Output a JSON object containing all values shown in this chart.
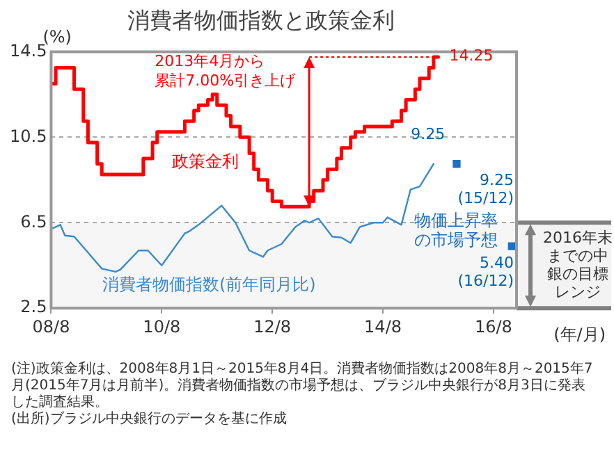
{
  "chart_data": {
    "type": "line",
    "title": "消費者物価指数と政策金利",
    "xlabel": "(年/月)",
    "ylabel": "(%)",
    "xlim": [
      "2008-08",
      "2017-01"
    ],
    "xticks": [
      {
        "value": "2008-08",
        "label": "08/8"
      },
      {
        "value": "2010-08",
        "label": "10/8"
      },
      {
        "value": "2012-08",
        "label": "12/8"
      },
      {
        "value": "2014-08",
        "label": "14/8"
      },
      {
        "value": "2016-08",
        "label": "16/8"
      }
    ],
    "ylim": [
      2.5,
      14.5
    ],
    "yticks": [
      2.5,
      6.5,
      10.5,
      14.5
    ],
    "grid": "y",
    "series": [
      {
        "name": "政策金利",
        "type": "step",
        "color": "#ff0000",
        "x": [
          "2008-08",
          "2008-09",
          "2009-01",
          "2009-03",
          "2009-04",
          "2009-06",
          "2009-07",
          "2010-04",
          "2010-06",
          "2010-07",
          "2011-01",
          "2011-03",
          "2011-04",
          "2011-06",
          "2011-07",
          "2011-08",
          "2011-10",
          "2011-11",
          "2012-01",
          "2012-03",
          "2012-04",
          "2012-05",
          "2012-07",
          "2012-08",
          "2012-10",
          "2013-04",
          "2013-05",
          "2013-07",
          "2013-08",
          "2013-10",
          "2013-11",
          "2014-01",
          "2014-02",
          "2014-04",
          "2014-10",
          "2014-12",
          "2015-01",
          "2015-03",
          "2015-04",
          "2015-06",
          "2015-07",
          "2015-08"
        ],
        "values": [
          13.0,
          13.75,
          12.75,
          11.25,
          10.25,
          9.25,
          8.75,
          9.5,
          10.25,
          10.75,
          11.25,
          11.75,
          12.0,
          12.25,
          12.5,
          12.0,
          11.5,
          11.0,
          10.5,
          9.75,
          9.0,
          8.5,
          8.0,
          7.5,
          7.25,
          7.5,
          8.0,
          8.5,
          9.0,
          9.5,
          10.0,
          10.5,
          10.75,
          11.0,
          11.25,
          11.75,
          12.25,
          12.75,
          13.25,
          13.75,
          14.25,
          14.25
        ]
      },
      {
        "name": "消費者物価指数(前年同月比)",
        "color": "#3a8ad0",
        "x": [
          "2008-08",
          "2008-10",
          "2008-11",
          "2009-01",
          "2009-04",
          "2009-07",
          "2009-10",
          "2009-11",
          "2010-03",
          "2010-05",
          "2010-08",
          "2011-01",
          "2011-02",
          "2011-04",
          "2011-09",
          "2011-12",
          "2012-03",
          "2012-06",
          "2012-07",
          "2012-10",
          "2013-01",
          "2013-03",
          "2013-04",
          "2013-06",
          "2013-09",
          "2013-11",
          "2014-01",
          "2014-03",
          "2014-06",
          "2014-08",
          "2014-09",
          "2014-12",
          "2015-02",
          "2015-04",
          "2015-07"
        ],
        "values": [
          6.2,
          6.4,
          5.9,
          5.85,
          5.1,
          4.35,
          4.2,
          4.3,
          5.2,
          5.2,
          4.5,
          6.0,
          6.1,
          6.4,
          7.3,
          6.5,
          5.2,
          4.9,
          5.2,
          5.5,
          6.3,
          6.6,
          6.5,
          6.7,
          5.85,
          5.8,
          5.55,
          6.3,
          6.5,
          6.5,
          6.75,
          6.4,
          8.05,
          8.2,
          9.25
        ]
      },
      {
        "name": "物価上昇率の市場予想",
        "type": "scatter",
        "color": "#1f6fc4",
        "marker": "square",
        "x": [
          "2015-12",
          "2016-12"
        ],
        "values": [
          9.25,
          5.4
        ],
        "value_labels": [
          "9.25\n(15/12)",
          "5.40\n(16/12)"
        ]
      }
    ],
    "bands": [
      {
        "axis": "y",
        "from": 2.5,
        "to": 6.5,
        "label": "2016年末までの中銀の目標レンジ",
        "color": "#808080"
      }
    ],
    "annotations": [
      "2013年4月から累計7.00%引き上げ",
      {
        "text": "14.25",
        "x": "2015-08",
        "y": 14.25
      },
      {
        "text": "9.25",
        "x": "2015-07",
        "y": 9.25
      },
      "(注)政策金利は、2008年8月1日～2015年8月4日。消費者物価指数は2008年8月～2015年7月(2015年7月は月前半)。消費者物価指数の市場予想は、ブラジル中央銀行が8月3日に発表した調査結果。",
      "(出所)ブラジル中央銀行のデータを基に作成"
    ]
  }
}
